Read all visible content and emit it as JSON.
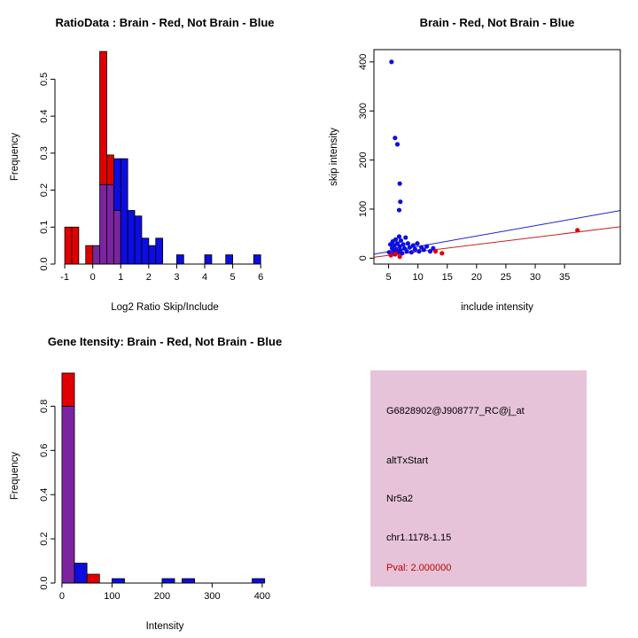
{
  "palette": {
    "red": "#E00000",
    "blue": "#0D0DE0",
    "purple": "#7B24A0",
    "bar_border": "#000000",
    "axis": "#000000",
    "background": "#FFFFFF",
    "pval_red": "#C00000",
    "info_bg": "#E6C3D8"
  },
  "chart_data": [
    {
      "id": "ratio_hist",
      "type": "bar",
      "title": "RatioData : Brain - Red, Not Brain - Blue",
      "xlabel": "Log2 Ratio Skip/Include",
      "ylabel": "Frequency",
      "legend": "Brain = red bars, Not Brain = blue bars, overlap = purple",
      "xlim": [
        -1.35,
        6.5
      ],
      "ylim": [
        0,
        0.58
      ],
      "xticks": [
        -1,
        0,
        1,
        2,
        3,
        4,
        5,
        6
      ],
      "xtick_labels": [
        "-1",
        "0",
        "1",
        "2",
        "3",
        "4",
        "5",
        "6"
      ],
      "yticks": [
        0.0,
        0.1,
        0.2,
        0.3,
        0.4,
        0.5
      ],
      "ytick_labels": [
        "0.0",
        "0.1",
        "0.2",
        "0.3",
        "0.4",
        "0.5"
      ],
      "grid": false,
      "segments": [
        {
          "x": -1.0,
          "w": 0.25,
          "y0": 0,
          "y1": 0.1,
          "c": "red"
        },
        {
          "x": -0.75,
          "w": 0.25,
          "y0": 0,
          "y1": 0.1,
          "c": "red"
        },
        {
          "x": -0.25,
          "w": 0.25,
          "y0": 0,
          "y1": 0.05,
          "c": "red"
        },
        {
          "x": 0,
          "w": 0.25,
          "y0": 0,
          "y1": 0.05,
          "c": "purple"
        },
        {
          "x": 0.25,
          "w": 0.25,
          "y0": 0,
          "y1": 0.215,
          "c": "purple"
        },
        {
          "x": 0.25,
          "w": 0.25,
          "y0": 0.215,
          "y1": 0.575,
          "c": "red"
        },
        {
          "x": 0.5,
          "w": 0.25,
          "y0": 0,
          "y1": 0.215,
          "c": "purple"
        },
        {
          "x": 0.5,
          "w": 0.25,
          "y0": 0.215,
          "y1": 0.295,
          "c": "red"
        },
        {
          "x": 0.75,
          "w": 0.25,
          "y0": 0,
          "y1": 0.145,
          "c": "purple"
        },
        {
          "x": 0.75,
          "w": 0.25,
          "y0": 0.145,
          "y1": 0.285,
          "c": "blue"
        },
        {
          "x": 1.0,
          "w": 0.25,
          "y0": 0,
          "y1": 0.285,
          "c": "blue"
        },
        {
          "x": 1.25,
          "w": 0.25,
          "y0": 0,
          "y1": 0.145,
          "c": "blue"
        },
        {
          "x": 1.5,
          "w": 0.25,
          "y0": 0,
          "y1": 0.13,
          "c": "blue"
        },
        {
          "x": 1.75,
          "w": 0.25,
          "y0": 0,
          "y1": 0.07,
          "c": "blue"
        },
        {
          "x": 2.0,
          "w": 0.25,
          "y0": 0,
          "y1": 0.05,
          "c": "blue"
        },
        {
          "x": 2.25,
          "w": 0.25,
          "y0": 0,
          "y1": 0.07,
          "c": "blue"
        },
        {
          "x": 3.0,
          "w": 0.25,
          "y0": 0,
          "y1": 0.025,
          "c": "blue"
        },
        {
          "x": 4.0,
          "w": 0.25,
          "y0": 0,
          "y1": 0.025,
          "c": "blue"
        },
        {
          "x": 4.75,
          "w": 0.25,
          "y0": 0,
          "y1": 0.025,
          "c": "blue"
        },
        {
          "x": 5.75,
          "w": 0.25,
          "y0": 0,
          "y1": 0.025,
          "c": "blue"
        }
      ]
    },
    {
      "id": "scatter",
      "type": "scatter",
      "title": "Brain - Red, Not Brain - Blue",
      "xlabel": "include intensity",
      "ylabel": "skip intensity",
      "xlim": [
        2.5,
        44.5
      ],
      "ylim": [
        -12,
        425
      ],
      "xticks": [
        5,
        10,
        15,
        20,
        25,
        30,
        35
      ],
      "xtick_labels": [
        "5",
        "10",
        "15",
        "20",
        "25",
        "30",
        "35"
      ],
      "yticks": [
        0,
        100,
        200,
        300,
        400
      ],
      "ytick_labels": [
        "0",
        "100",
        "200",
        "300",
        "400"
      ],
      "box": true,
      "grid": false,
      "series": [
        {
          "name": "Not Brain",
          "color": "#0D0DE0",
          "points": [
            [
              5.5,
              400
            ],
            [
              6.1,
              245
            ],
            [
              6.5,
              232
            ],
            [
              6.9,
              152
            ],
            [
              7.0,
              115
            ],
            [
              6.8,
              98
            ],
            [
              5.1,
              12
            ],
            [
              5.3,
              28
            ],
            [
              5.4,
              8
            ],
            [
              5.6,
              20
            ],
            [
              5.7,
              34
            ],
            [
              5.9,
              15
            ],
            [
              6.0,
              26
            ],
            [
              6.1,
              8
            ],
            [
              6.2,
              38
            ],
            [
              6.3,
              18
            ],
            [
              6.5,
              30
            ],
            [
              6.6,
              12
            ],
            [
              6.8,
              44
            ],
            [
              6.9,
              24
            ],
            [
              7.0,
              16
            ],
            [
              7.1,
              36
            ],
            [
              7.3,
              10
            ],
            [
              7.5,
              28
            ],
            [
              7.7,
              20
            ],
            [
              7.9,
              42
            ],
            [
              8.1,
              14
            ],
            [
              8.3,
              30
            ],
            [
              8.6,
              22
            ],
            [
              8.9,
              12
            ],
            [
              9.2,
              26
            ],
            [
              9.5,
              18
            ],
            [
              9.9,
              30
            ],
            [
              10.2,
              14
            ],
            [
              10.6,
              22
            ],
            [
              11.0,
              17
            ],
            [
              11.5,
              24
            ],
            [
              12.1,
              14
            ],
            [
              12.6,
              20
            ]
          ]
        },
        {
          "name": "Brain",
          "color": "#E00000",
          "points": [
            [
              5.4,
              6
            ],
            [
              6.2,
              9
            ],
            [
              6.9,
              3
            ],
            [
              13.0,
              14
            ],
            [
              14.1,
              10
            ],
            [
              37.2,
              57
            ]
          ]
        }
      ],
      "lines": [
        {
          "name": "not-brain-fit",
          "color": "#2222CC",
          "x1": 2.5,
          "y1": 8,
          "x2": 44.5,
          "y2": 97
        },
        {
          "name": "brain-fit",
          "color": "#CC2020",
          "x1": 2.5,
          "y1": 2,
          "x2": 44.5,
          "y2": 64
        }
      ]
    },
    {
      "id": "gene_hist",
      "type": "bar",
      "title": "Gene Itensity: Brain - Red, Not Brain - Blue",
      "xlabel": "Intensity",
      "ylabel": "Frequency",
      "legend": "Brain = red bars, Not Brain = blue bars, overlap = purple",
      "xlim": [
        -14,
        425
      ],
      "ylim": [
        0,
        0.97
      ],
      "xticks": [
        0,
        100,
        200,
        300,
        400
      ],
      "xtick_labels": [
        "0",
        "100",
        "200",
        "300",
        "400"
      ],
      "yticks": [
        0.0,
        0.2,
        0.4,
        0.6,
        0.8
      ],
      "ytick_labels": [
        "0.0",
        "0.2",
        "0.4",
        "0.6",
        "0.8"
      ],
      "grid": false,
      "segments": [
        {
          "x": 0,
          "w": 25,
          "y0": 0,
          "y1": 0.8,
          "c": "purple"
        },
        {
          "x": 0,
          "w": 25,
          "y0": 0.8,
          "y1": 0.95,
          "c": "red"
        },
        {
          "x": 25,
          "w": 25,
          "y0": 0,
          "y1": 0.09,
          "c": "blue"
        },
        {
          "x": 50,
          "w": 25,
          "y0": 0,
          "y1": 0.04,
          "c": "red"
        },
        {
          "x": 100,
          "w": 25,
          "y0": 0,
          "y1": 0.02,
          "c": "blue"
        },
        {
          "x": 200,
          "w": 25,
          "y0": 0,
          "y1": 0.02,
          "c": "blue"
        },
        {
          "x": 240,
          "w": 25,
          "y0": 0,
          "y1": 0.02,
          "c": "blue"
        },
        {
          "x": 380,
          "w": 25,
          "y0": 0,
          "y1": 0.02,
          "c": "blue"
        }
      ]
    }
  ],
  "info_box": {
    "bg": "#E6C3D8",
    "lines": [
      {
        "text": "G6828902@J908777_RC@j_at",
        "color": "#000000"
      },
      {
        "text": "altTxStart",
        "color": "#000000"
      },
      {
        "text": "Nr5a2",
        "color": "#000000"
      },
      {
        "text": "chr1.1178-1.15",
        "color": "#000000"
      },
      {
        "text": "Pval: 2.000000",
        "color": "#C00000"
      }
    ]
  }
}
